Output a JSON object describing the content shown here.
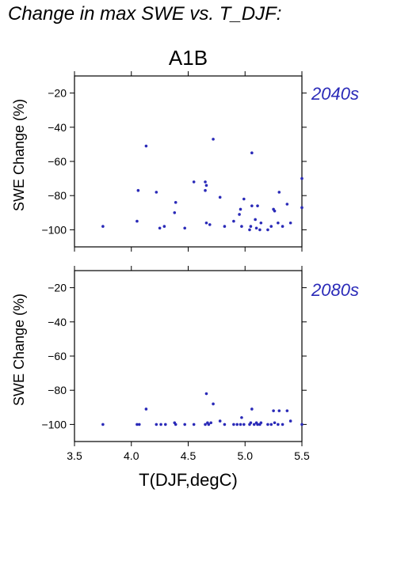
{
  "title": "Change in max SWE vs. T_DJF:",
  "scenario": "A1B",
  "chart_data": [
    {
      "type": "scatter",
      "panel_label": "2040s",
      "ylabel": "SWE Change (%)",
      "xlim": [
        3.5,
        5.5
      ],
      "ylim": [
        -110,
        -10
      ],
      "xticks": [
        3.5,
        4.0,
        4.5,
        5.0,
        5.5
      ],
      "xtick_labels": [
        "3.5",
        "4.0",
        "4.5",
        "5.0",
        "5.5"
      ],
      "yticks": [
        -20,
        -40,
        -60,
        -80,
        -100
      ],
      "ytick_labels": [
        "−20",
        "−40",
        "−60",
        "−80",
        "−100"
      ],
      "show_xtick_labels": false,
      "color": "#2a2ab8",
      "points": [
        [
          3.75,
          -98
        ],
        [
          4.05,
          -95
        ],
        [
          4.06,
          -77
        ],
        [
          4.13,
          -51
        ],
        [
          4.22,
          -78
        ],
        [
          4.25,
          -99
        ],
        [
          4.29,
          -98
        ],
        [
          4.38,
          -90
        ],
        [
          4.39,
          -84
        ],
        [
          4.47,
          -99
        ],
        [
          4.55,
          -72
        ],
        [
          4.65,
          -72
        ],
        [
          4.65,
          -77
        ],
        [
          4.66,
          -74
        ],
        [
          4.66,
          -96
        ],
        [
          4.69,
          -97
        ],
        [
          4.72,
          -47
        ],
        [
          4.78,
          -81
        ],
        [
          4.82,
          -98
        ],
        [
          4.9,
          -95
        ],
        [
          4.95,
          -91
        ],
        [
          4.96,
          -88
        ],
        [
          4.97,
          -98
        ],
        [
          4.99,
          -82
        ],
        [
          5.04,
          -100
        ],
        [
          5.05,
          -98
        ],
        [
          5.06,
          -55
        ],
        [
          5.06,
          -86
        ],
        [
          5.09,
          -94
        ],
        [
          5.1,
          -99
        ],
        [
          5.11,
          -86
        ],
        [
          5.13,
          -100
        ],
        [
          5.14,
          -96
        ],
        [
          5.2,
          -100
        ],
        [
          5.23,
          -98
        ],
        [
          5.25,
          -88
        ],
        [
          5.26,
          -89
        ],
        [
          5.29,
          -96
        ],
        [
          5.3,
          -78
        ],
        [
          5.33,
          -98
        ],
        [
          5.37,
          -85
        ],
        [
          5.4,
          -96
        ],
        [
          5.5,
          -70
        ],
        [
          5.5,
          -87
        ]
      ]
    },
    {
      "type": "scatter",
      "panel_label": "2080s",
      "ylabel": "SWE Change (%)",
      "xlabel": "T(DJF,degC)",
      "xlim": [
        3.5,
        5.5
      ],
      "ylim": [
        -110,
        -10
      ],
      "xticks": [
        3.5,
        4.0,
        4.5,
        5.0,
        5.5
      ],
      "xtick_labels": [
        "3.5",
        "4.0",
        "4.5",
        "5.0",
        "5.5"
      ],
      "yticks": [
        -20,
        -40,
        -60,
        -80,
        -100
      ],
      "ytick_labels": [
        "−20",
        "−40",
        "−60",
        "−80",
        "−100"
      ],
      "show_xtick_labels": true,
      "color": "#2a2ab8",
      "points": [
        [
          3.75,
          -100
        ],
        [
          4.05,
          -100
        ],
        [
          4.07,
          -100
        ],
        [
          4.13,
          -91
        ],
        [
          4.22,
          -100
        ],
        [
          4.26,
          -100
        ],
        [
          4.3,
          -100
        ],
        [
          4.38,
          -99
        ],
        [
          4.39,
          -100
        ],
        [
          4.47,
          -100
        ],
        [
          4.55,
          -100
        ],
        [
          4.65,
          -100
        ],
        [
          4.66,
          -82
        ],
        [
          4.67,
          -99
        ],
        [
          4.68,
          -100
        ],
        [
          4.7,
          -99
        ],
        [
          4.72,
          -88
        ],
        [
          4.78,
          -98
        ],
        [
          4.82,
          -100
        ],
        [
          4.9,
          -100
        ],
        [
          4.93,
          -100
        ],
        [
          4.96,
          -100
        ],
        [
          4.97,
          -96
        ],
        [
          4.99,
          -100
        ],
        [
          5.04,
          -100
        ],
        [
          5.05,
          -99
        ],
        [
          5.06,
          -91
        ],
        [
          5.08,
          -100
        ],
        [
          5.1,
          -99
        ],
        [
          5.11,
          -100
        ],
        [
          5.13,
          -100
        ],
        [
          5.14,
          -99
        ],
        [
          5.2,
          -100
        ],
        [
          5.23,
          -100
        ],
        [
          5.25,
          -92
        ],
        [
          5.26,
          -99
        ],
        [
          5.29,
          -100
        ],
        [
          5.3,
          -92
        ],
        [
          5.33,
          -100
        ],
        [
          5.37,
          -92
        ],
        [
          5.4,
          -98
        ],
        [
          5.5,
          -100
        ]
      ]
    }
  ]
}
